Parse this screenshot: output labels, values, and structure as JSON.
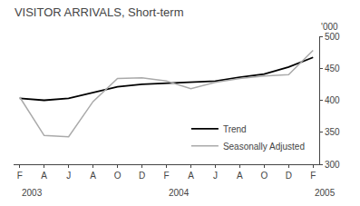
{
  "chart_data": {
    "type": "line",
    "title": "VISITOR ARRIVALS, Short-term",
    "y_label": "'000",
    "categories": [
      "F",
      "A",
      "J",
      "A",
      "O",
      "D",
      "F",
      "A",
      "J",
      "A",
      "O",
      "D",
      "F"
    ],
    "series": [
      {
        "name": "Trend",
        "color": "#000000",
        "values": [
          403,
          400,
          403,
          412,
          421,
          425,
          427,
          428,
          430,
          436,
          441,
          452,
          467
        ]
      },
      {
        "name": "Seasonally Adjusted",
        "color": "#aaaaaa",
        "values": [
          405,
          345,
          343,
          398,
          434,
          435,
          430,
          418,
          428,
          434,
          438,
          440,
          478
        ]
      }
    ],
    "ylim": [
      300,
      500
    ],
    "yticks": [
      300,
      350,
      400,
      450,
      500
    ],
    "annotations": [
      {
        "text": "2003",
        "x": 0
      },
      {
        "text": "2004",
        "x": 6
      },
      {
        "text": "2005",
        "x": 12
      }
    ],
    "grid": false,
    "legend": "lower right"
  }
}
